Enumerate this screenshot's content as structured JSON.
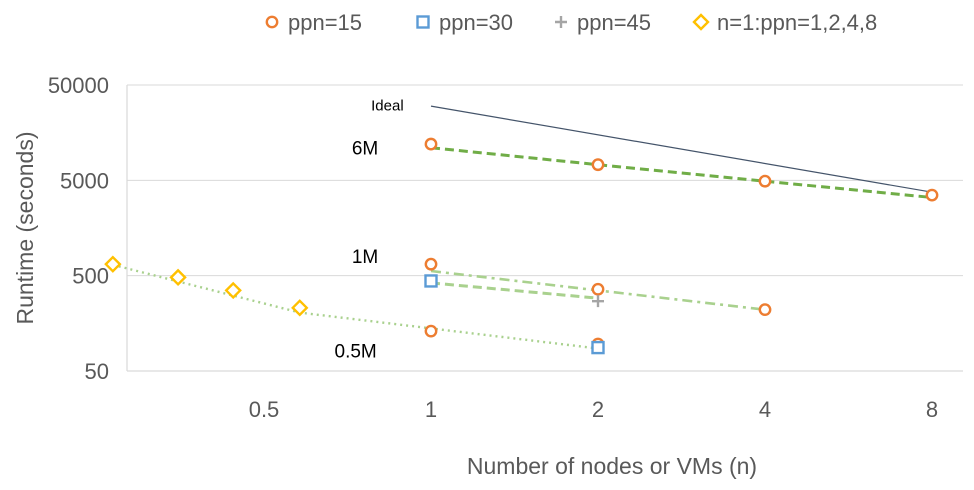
{
  "chart_data": {
    "type": "scatter",
    "title": "",
    "xlabel": "Number of nodes or VMs (n)",
    "ylabel": "Runtime (seconds)",
    "xscale": "log2",
    "yscale": "log10",
    "xlim": [
      0.25,
      8
    ],
    "ylim": [
      50,
      50000
    ],
    "x_ticks": [
      0.5,
      1,
      2,
      4,
      8
    ],
    "y_ticks": [
      50,
      500,
      5000,
      50000
    ],
    "grid": "horizontal",
    "legend_position": "top",
    "legend": [
      "ppn=15",
      "ppn=30",
      "ppn=45",
      "n=1:ppn=1,2,4,8"
    ],
    "series": [
      {
        "name": "ppn=15",
        "marker": "circle",
        "color": "#ED7D31",
        "points": [
          [
            1,
            12000
          ],
          [
            2,
            7300
          ],
          [
            4,
            4900
          ],
          [
            8,
            3500
          ],
          [
            1,
            660
          ],
          [
            2,
            360
          ],
          [
            4,
            220
          ],
          [
            1,
            131
          ],
          [
            2,
            96
          ]
        ]
      },
      {
        "name": "ppn=30",
        "marker": "square",
        "color": "#5B9BD5",
        "points": [
          [
            1,
            440
          ],
          [
            2,
            88
          ]
        ]
      },
      {
        "name": "ppn=45",
        "marker": "plus",
        "color": "#A5A5A5",
        "points": [
          [
            2,
            270
          ]
        ]
      },
      {
        "name": "n=1:ppn=1,2,4,8",
        "marker": "diamond",
        "color": "#FFC000",
        "points": [
          [
            0.267,
            660
          ],
          [
            0.35,
            480
          ],
          [
            0.44,
            350
          ],
          [
            0.58,
            230
          ]
        ]
      }
    ],
    "lines": [
      {
        "label": "Ideal",
        "style": "solid",
        "color": "#44546A",
        "points": [
          [
            1,
            30000
          ],
          [
            8,
            3750
          ]
        ]
      },
      {
        "label": "6M",
        "style": "dashed",
        "color": "#70AD47",
        "points": [
          [
            1,
            11000
          ],
          [
            2,
            7300
          ],
          [
            4,
            4900
          ],
          [
            8,
            3300
          ]
        ]
      },
      {
        "label": "1M",
        "style": "dashdot",
        "color": "#A9D18E",
        "points": [
          [
            1,
            560
          ],
          [
            2,
            350
          ],
          [
            4,
            220
          ]
        ]
      },
      {
        "label": "",
        "style": "dashed",
        "color": "#A9D18E",
        "points": [
          [
            1,
            420
          ],
          [
            2,
            290
          ]
        ]
      },
      {
        "label": "0.5M",
        "style": "dotted",
        "color": "#A9D18E",
        "points": [
          [
            0.267,
            650
          ],
          [
            0.58,
            205
          ],
          [
            1,
            140
          ],
          [
            2,
            86
          ]
        ]
      }
    ],
    "annotations": [
      {
        "text": "Ideal",
        "x": 0.78,
        "y": 32000,
        "size": "small"
      },
      {
        "text": "6M",
        "x": 0.72,
        "y": 11000
      },
      {
        "text": "1M",
        "x": 0.72,
        "y": 800
      },
      {
        "text": "0.5M",
        "x": 0.67,
        "y": 82
      }
    ]
  }
}
